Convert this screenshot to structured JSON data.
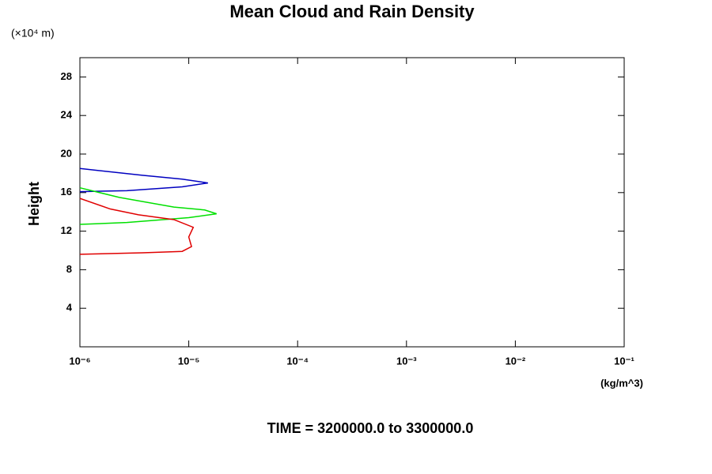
{
  "chart_data": {
    "type": "line",
    "title": "Mean Cloud and Rain Density",
    "y_unit": "(×10⁴ m)",
    "y_label": "Height",
    "x_unit": "(kg/m^3)",
    "footer": "TIME = 3200000.0 to 3300000.0",
    "x_scale": "log",
    "xlim": [
      1e-06,
      0.1
    ],
    "xticks": [
      {
        "value": 1e-06,
        "label": "10⁻⁶"
      },
      {
        "value": 1e-05,
        "label": "10⁻⁵"
      },
      {
        "value": 0.0001,
        "label": "10⁻⁴"
      },
      {
        "value": 0.001,
        "label": "10⁻³"
      },
      {
        "value": 0.01,
        "label": "10⁻²"
      },
      {
        "value": 0.1,
        "label": "10⁻¹"
      }
    ],
    "ylim": [
      0,
      30
    ],
    "yticks": [
      4,
      8,
      12,
      16,
      20,
      24,
      28
    ],
    "series": [
      {
        "color": "#0000c0",
        "x": [
          1e-06,
          3.75e-06,
          8.7e-06,
          1.5e-05,
          8.7e-06,
          2.7e-06,
          1e-06
        ],
        "values": [
          18.5,
          17.8,
          17.4,
          17.0,
          16.6,
          16.2,
          16.1
        ]
      },
      {
        "color": "#00e000",
        "x": [
          1e-06,
          2.3e-06,
          7.3e-06,
          1.4e-05,
          1.8e-05,
          1e-05,
          2.7e-06,
          1e-06
        ],
        "values": [
          16.5,
          15.5,
          14.5,
          14.2,
          13.8,
          13.4,
          12.9,
          12.7
        ]
      },
      {
        "color": "#e00000",
        "x": [
          1e-06,
          1.9e-06,
          3.45e-06,
          7.3e-06,
          1.1e-05,
          1e-05,
          1.06e-05,
          8.7e-06,
          3.75e-06,
          1e-06
        ],
        "values": [
          15.4,
          14.3,
          13.7,
          13.2,
          12.4,
          11.4,
          10.4,
          9.9,
          9.75,
          9.6
        ]
      }
    ]
  }
}
